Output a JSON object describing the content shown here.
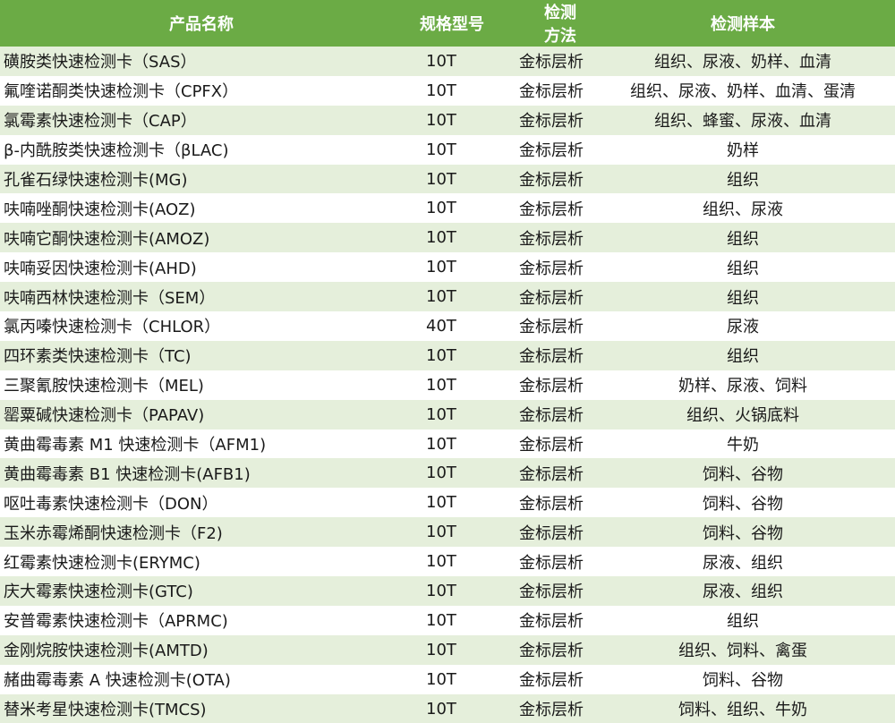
{
  "headers": [
    "产品名称",
    "规格型号",
    "检测方法",
    "检测样本"
  ],
  "rows": [
    [
      "磺胺类快速检测卡（SAS）",
      "10T",
      "金标层析",
      "组织、尿液、奶样、血清"
    ],
    [
      "氟喹诺酮类快速检测卡（CPFX）",
      "10T",
      "金标层析",
      "组织、尿液、奶样、血清、蛋清"
    ],
    [
      "氯霉素快速检测卡（CAP）",
      "10T",
      "金标层析",
      "组织、蜂蜜、尿液、血清"
    ],
    [
      "β-内酰胺类快速检测卡（βLAC)",
      "10T",
      "金标层析",
      "奶样"
    ],
    [
      "孔雀石绿快速检测卡(MG)",
      "10T",
      "金标层析",
      "组织"
    ],
    [
      "呋喃唑酮快速检测卡(AOZ)",
      "10T",
      "金标层析",
      "组织、尿液"
    ],
    [
      "呋喃它酮快速检测卡(AMOZ)",
      "10T",
      "金标层析",
      "组织"
    ],
    [
      "呋喃妥因快速检测卡(AHD)",
      "10T",
      "金标层析",
      "组织"
    ],
    [
      "呋喃西林快速检测卡（SEM）",
      "10T",
      "金标层析",
      "组织"
    ],
    [
      "氯丙嗪快速检测卡（CHLOR）",
      "40T",
      "金标层析",
      "尿液"
    ],
    [
      "四环素类快速检测卡（TC)",
      "10T",
      "金标层析",
      "组织"
    ],
    [
      "三聚氰胺快速检测卡（MEL)",
      "10T",
      "金标层析",
      "奶样、尿液、饲料"
    ],
    [
      "罂粟碱快速检测卡（PAPAV)",
      "10T",
      "金标层析",
      "组织、火锅底料"
    ],
    [
      "黄曲霉毒素 M1 快速检测卡（AFM1)",
      "10T",
      "金标层析",
      "牛奶"
    ],
    [
      "黄曲霉毒素 B1 快速检测卡(AFB1)",
      "10T",
      "金标层析",
      "饲料、谷物"
    ],
    [
      "呕吐毒素快速检测卡（DON）",
      "10T",
      "金标层析",
      "饲料、谷物"
    ],
    [
      "玉米赤霉烯酮快速检测卡（F2)",
      "10T",
      "金标层析",
      "饲料、谷物"
    ],
    [
      "红霉素快速检测卡(ERYMC)",
      "10T",
      "金标层析",
      "尿液、组织"
    ],
    [
      "庆大霉素快速检测卡(GTC)",
      "10T",
      "金标层析",
      "尿液、组织"
    ],
    [
      "安普霉素快速检测卡（APRMC)",
      "10T",
      "金标层析",
      "组织"
    ],
    [
      "金刚烷胺快速检测卡(AMTD)",
      "10T",
      "金标层析",
      "组织、饲料、禽蛋"
    ],
    [
      "赭曲霉毒素 A 快速检测卡(OTA)",
      "10T",
      "金标层析",
      "饲料、谷物"
    ],
    [
      "替米考星快速检测卡(TMCS)",
      "10T",
      "金标层析",
      "饲料、组织、牛奶"
    ]
  ],
  "colors": {
    "header": "#6bab45",
    "stripe": "#e5efdb"
  }
}
